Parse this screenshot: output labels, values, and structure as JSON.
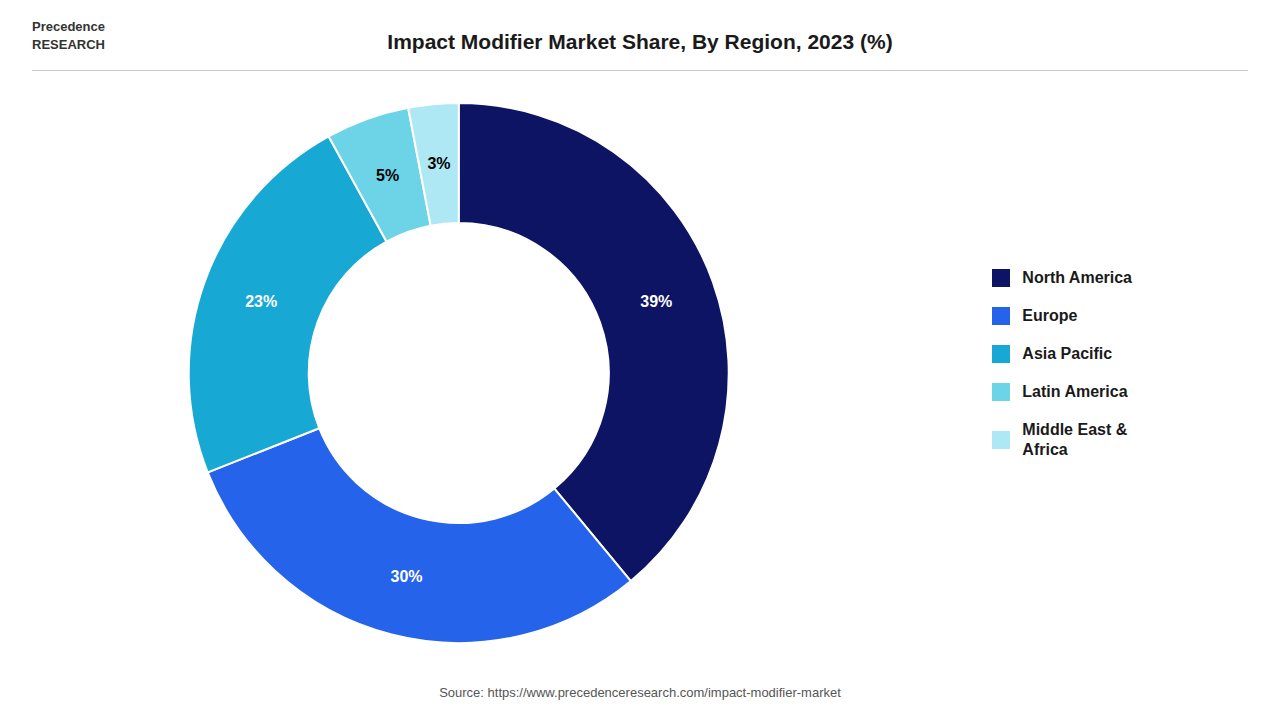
{
  "chart_data": {
    "type": "pie",
    "title": "Impact Modifier Market Share, By Region, 2023 (%)",
    "categories": [
      "North America",
      "Europe",
      "Asia Pacific",
      "Latin America",
      "Middle East &\nAfrica"
    ],
    "values": [
      39,
      30,
      23,
      5,
      3
    ],
    "value_labels": [
      "39%",
      "30%",
      "23%",
      "5%",
      "3%"
    ],
    "colors": [
      "#0d1464",
      "#2563eb",
      "#17a8d4",
      "#6dd4e8",
      "#aee8f5"
    ],
    "data_labels": true,
    "legend": "right",
    "annotations": [
      "Precedence\nRESEARCH",
      "Source: https://www.precedenceresearch.com/impact-modifier-market"
    ]
  }
}
